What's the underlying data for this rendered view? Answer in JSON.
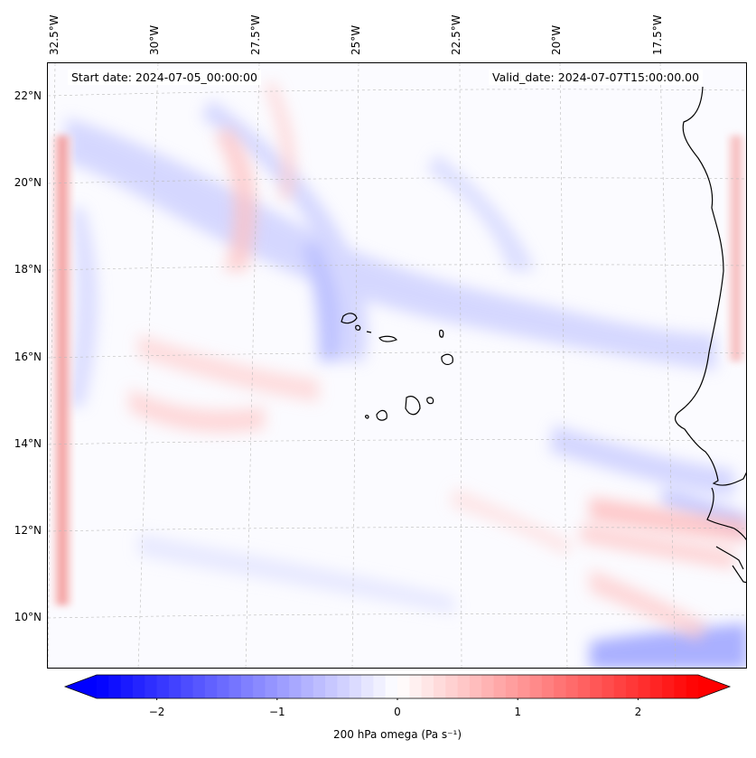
{
  "map": {
    "start_date_label": "Start date: 2024-07-05_00:00:00",
    "valid_date_label": "Valid_date: 2024-07-07T15:00:00.00",
    "longitude_labels": [
      "32.5°W",
      "30°W",
      "27.5°W",
      "25°W",
      "22.5°W",
      "20°W",
      "17.5°W"
    ],
    "latitude_labels": [
      "22°N",
      "20°N",
      "18°N",
      "16°N",
      "14°N",
      "12°N",
      "10°N"
    ],
    "coastline_color": "#000000",
    "gridline_color": "#bbbbbb"
  },
  "colorbar": {
    "title": "200 hPa omega (Pa s⁻¹)",
    "tick_labels": [
      "−2",
      "−1",
      "0",
      "1",
      "2"
    ],
    "tick_values": [
      -2,
      -1,
      0,
      1,
      2
    ],
    "range": [
      -2.5,
      2.5
    ],
    "min_color": "#0000ff",
    "mid_color": "#ffffff",
    "max_color": "#ff0000",
    "extend": "both"
  }
}
